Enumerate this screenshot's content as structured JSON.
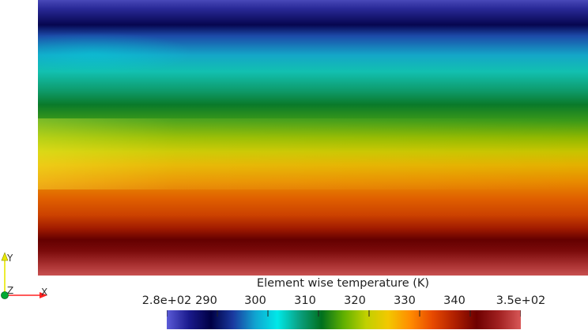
{
  "colorbar": {
    "title": "Element wise temperature (K)",
    "tick_labels": [
      "2.8e+02",
      "290",
      "300",
      "310",
      "320",
      "330",
      "340",
      "3.5e+02"
    ],
    "tick_values": [
      280,
      290,
      300,
      310,
      320,
      330,
      340,
      350
    ],
    "range": [
      280,
      350
    ],
    "colormap": [
      "#5b5bd8",
      "#1a1a8c",
      "#000044",
      "#1a3aa0",
      "#10a4d0",
      "#00e8e8",
      "#0aa080",
      "#00701e",
      "#60b000",
      "#c0d000",
      "#f2c800",
      "#ff8c00",
      "#e84a00",
      "#b02000",
      "#6e0000",
      "#a02020",
      "#d85858"
    ]
  },
  "axes": {
    "x_label": "X",
    "y_label": "Y",
    "z_label": "Z",
    "colors": {
      "x": "#ff2222",
      "y": "#e8e800",
      "z": "#00cc44"
    }
  }
}
